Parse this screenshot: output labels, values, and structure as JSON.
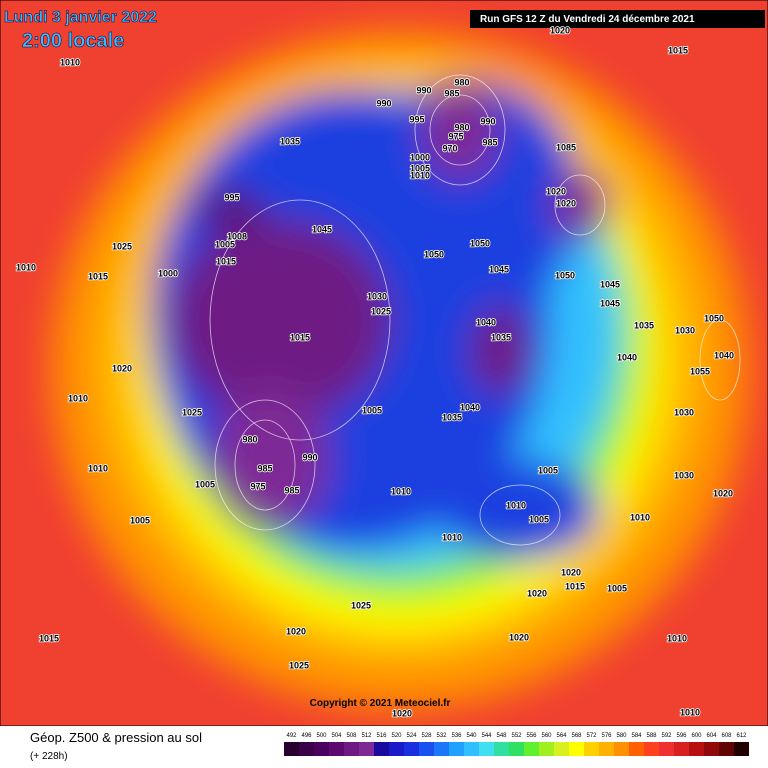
{
  "header": {
    "date": "Lundi 3 janvier 2022",
    "time": "2:00 locale",
    "run": "Run GFS 12 Z du Vendredi 24 décembre 2021"
  },
  "copyright": "Copyright © 2021 Meteociel.fr",
  "footer": {
    "title": "Géop. Z500 & pression au sol",
    "lead": "(+ 228h)"
  },
  "colorbar": {
    "values": [
      492,
      496,
      500,
      504,
      508,
      512,
      516,
      520,
      524,
      528,
      532,
      536,
      540,
      544,
      548,
      552,
      556,
      560,
      564,
      568,
      572,
      576,
      580,
      584,
      588,
      592,
      596,
      600,
      604,
      608,
      612
    ],
    "colors": [
      "#2a0030",
      "#3a0048",
      "#4a005e",
      "#5c0a70",
      "#6e1a84",
      "#7e2a96",
      "#1a0aa0",
      "#1a1ac8",
      "#1a30e0",
      "#1a50f0",
      "#1a78f8",
      "#20a0ff",
      "#30c0ff",
      "#40e0f0",
      "#30e0a0",
      "#30e060",
      "#60f030",
      "#a0f020",
      "#d8f020",
      "#ffff00",
      "#ffd000",
      "#ffb000",
      "#ff9000",
      "#ff6000",
      "#ff4020",
      "#f03030",
      "#d82020",
      "#b81010",
      "#900808",
      "#600404",
      "#200000"
    ]
  },
  "isobar_labels": [
    1010,
    1035,
    995,
    1008,
    1005,
    1015,
    1025,
    1000,
    1010,
    1015,
    1045,
    1030,
    1025,
    1015,
    1020,
    1010,
    1025,
    980,
    985,
    975,
    985,
    1005,
    990,
    1005,
    1010,
    1005,
    1010,
    1015,
    1020,
    1025,
    1025,
    990,
    995,
    990,
    980,
    985,
    990,
    980,
    975,
    970,
    985,
    1000,
    1005,
    1010,
    1020,
    1015,
    1085,
    1020,
    1020,
    1050,
    1050,
    1045,
    1050,
    1045,
    1045,
    1035,
    1040,
    1035,
    1040,
    1040,
    1035,
    1030,
    1050,
    1040,
    1055,
    1030,
    1005,
    1010,
    1005,
    1010,
    1030,
    1020,
    1010,
    1020,
    1015,
    1020,
    1005,
    1020,
    1010,
    1010,
    1020
  ]
}
